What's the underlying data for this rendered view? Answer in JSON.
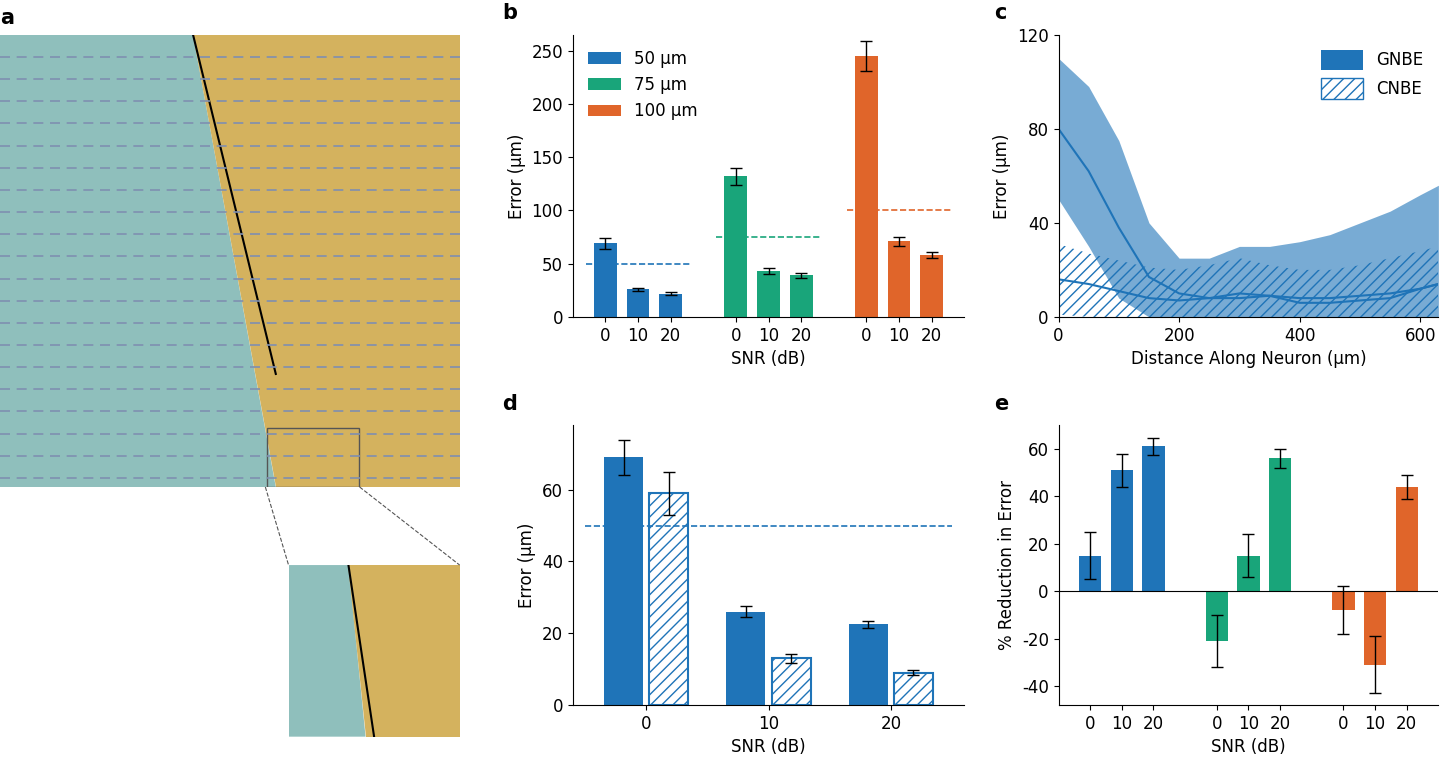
{
  "chart_data": [
    {
      "type": "diagram",
      "title": "a"
    },
    {
      "type": "bar",
      "title": "b",
      "categories": [
        "0",
        "10",
        "20"
      ],
      "xlabel": "SNR (dB)",
      "ylabel": "Error (µm)",
      "ylim": [
        0,
        265
      ],
      "yticks": [
        0,
        50,
        100,
        150,
        200,
        250
      ],
      "legend": "upper left",
      "series": [
        {
          "name": "50 µm",
          "color": "#1f74b8",
          "values": [
            69,
            26,
            22
          ],
          "errors": [
            5,
            1.5,
            1.2
          ],
          "reference": 50
        },
        {
          "name": "75 µm",
          "color": "#19a57a",
          "values": [
            132,
            43,
            39
          ],
          "errors": [
            8,
            2.5,
            2
          ],
          "reference": 75
        },
        {
          "name": "100 µm",
          "color": "#e0652a",
          "values": [
            245,
            71,
            58
          ],
          "errors": [
            14,
            4,
            3
          ],
          "reference": 100
        }
      ]
    },
    {
      "type": "line",
      "title": "c",
      "xlabel": "Distance Along Neuron (µm)",
      "ylabel": "Error (µm)",
      "xlim": [
        0,
        630
      ],
      "xticks": [
        0,
        200,
        400,
        600
      ],
      "ylim": [
        0,
        120
      ],
      "yticks": [
        0,
        40,
        80,
        120
      ],
      "legend": "upper right",
      "x": [
        0,
        50,
        100,
        150,
        200,
        250,
        300,
        350,
        400,
        450,
        500,
        550,
        600,
        630
      ],
      "series": [
        {
          "name": "GNBE",
          "color": "#1f74b8",
          "line_style": "solid",
          "values": [
            80,
            62,
            38,
            17,
            10,
            8,
            8,
            9,
            8,
            8,
            9,
            10,
            12,
            14
          ],
          "lower": [
            50,
            30,
            8,
            0,
            0,
            0,
            0,
            0,
            0,
            0,
            0,
            0,
            0,
            0
          ],
          "upper": [
            110,
            98,
            75,
            40,
            25,
            25,
            30,
            30,
            32,
            35,
            40,
            45,
            52,
            56
          ]
        },
        {
          "name": "CNBE",
          "color": "#1f74b8",
          "line_style": "hatched",
          "values": [
            16,
            14,
            11,
            8,
            7,
            8,
            10,
            9,
            6,
            6,
            7,
            8,
            12,
            14
          ],
          "lower": [
            1,
            0,
            0,
            0,
            0,
            0,
            0,
            0,
            0,
            0,
            0,
            0,
            0,
            0
          ],
          "upper": [
            31,
            27,
            24,
            21,
            20,
            22,
            25,
            22,
            20,
            20,
            22,
            25,
            28,
            30
          ]
        }
      ]
    },
    {
      "type": "bar",
      "title": "d",
      "categories": [
        "0",
        "10",
        "20"
      ],
      "xlabel": "SNR (dB)",
      "ylabel": "Error (µm)",
      "ylim": [
        0,
        78
      ],
      "yticks": [
        0,
        20,
        40,
        60
      ],
      "reference": 50,
      "series": [
        {
          "color": "#1f74b8",
          "line_style": "solid",
          "values": [
            69,
            26,
            22.5
          ],
          "errors": [
            5,
            1.5,
            1
          ]
        },
        {
          "color": "#1f74b8",
          "line_style": "hatched",
          "values": [
            59,
            13,
            9
          ],
          "errors": [
            6,
            1.2,
            0.7
          ]
        }
      ]
    },
    {
      "type": "bar",
      "title": "e",
      "categories": [
        "0",
        "10",
        "20"
      ],
      "xlabel": "SNR (dB)",
      "ylabel": "% Reduction in Error",
      "ylim": [
        -48,
        70
      ],
      "yticks": [
        -40,
        -20,
        0,
        20,
        40,
        60
      ],
      "series": [
        {
          "color": "#1f74b8",
          "values": [
            15,
            51,
            61
          ],
          "errors": [
            10,
            7,
            3.5
          ]
        },
        {
          "color": "#19a57a",
          "values": [
            -21,
            15,
            56
          ],
          "errors": [
            11,
            9,
            4
          ]
        },
        {
          "color": "#e0652a",
          "values": [
            -8,
            -31,
            44
          ],
          "errors": [
            10,
            12,
            5
          ]
        }
      ]
    }
  ]
}
